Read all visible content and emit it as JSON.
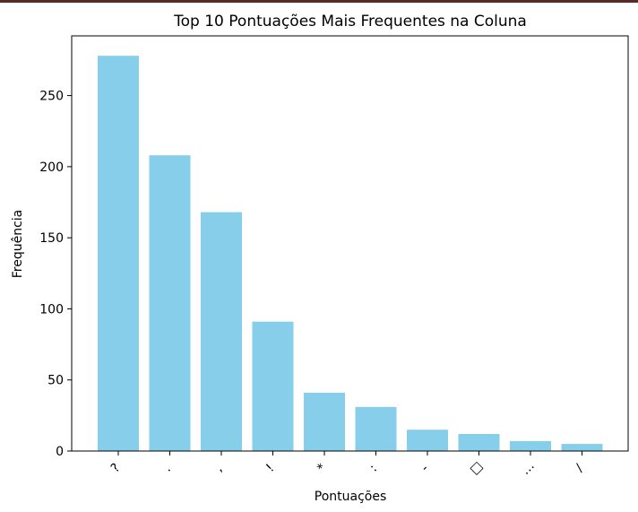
{
  "chart_data": {
    "type": "bar",
    "title": "Top 10 Pontuações Mais Frequentes na Coluna",
    "xlabel": "Pontuações",
    "ylabel": "Frequência",
    "categories": [
      "?",
      ".",
      ",",
      "!",
      "*",
      ":",
      "-",
      "□",
      "…",
      "/"
    ],
    "values": [
      278,
      208,
      168,
      91,
      41,
      31,
      15,
      12,
      7,
      5
    ],
    "ylim": [
      0,
      292
    ],
    "yticks": [
      0,
      50,
      100,
      150,
      200,
      250
    ],
    "grid": false,
    "legend": "none",
    "bar_color": "#87ceeb",
    "xtick_rotation": -45
  }
}
